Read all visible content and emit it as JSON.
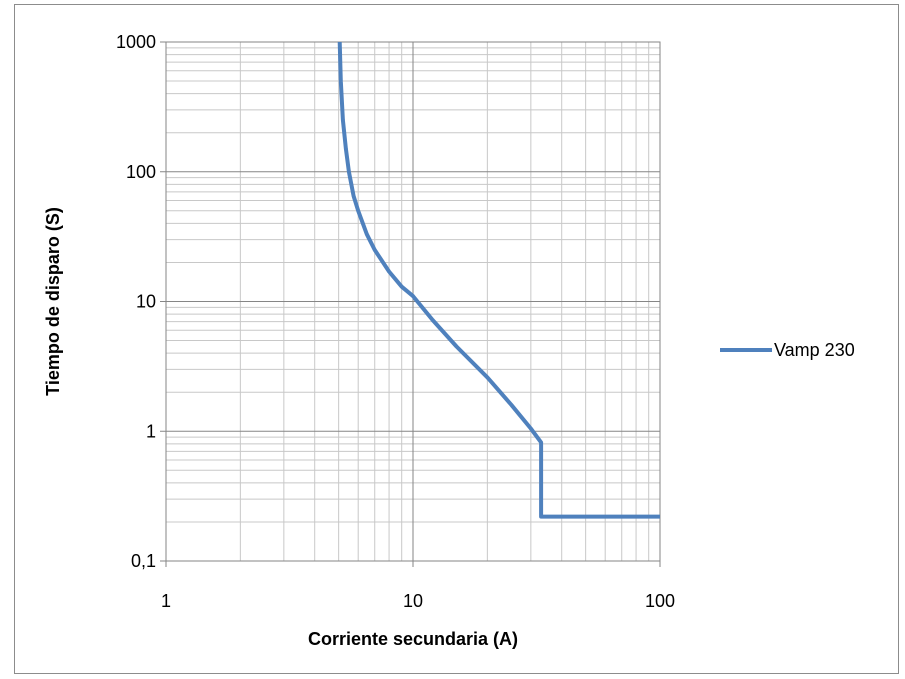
{
  "chart_data": {
    "type": "line",
    "xscale": "log",
    "yscale": "log",
    "xlim": [
      1,
      100
    ],
    "ylim": [
      0.1,
      1000
    ],
    "xlabel": "Corriente secundaria (A)",
    "ylabel": "Tiempo de disparo (S)",
    "x_ticks": [
      {
        "value": 1,
        "label": "1"
      },
      {
        "value": 10,
        "label": "10"
      },
      {
        "value": 100,
        "label": "100"
      }
    ],
    "y_ticks": [
      {
        "value": 0.1,
        "label": "0,1"
      },
      {
        "value": 1,
        "label": "1"
      },
      {
        "value": 10,
        "label": "10"
      },
      {
        "value": 100,
        "label": "100"
      },
      {
        "value": 1000,
        "label": "1000"
      }
    ],
    "grid": {
      "major": true,
      "minor": true
    },
    "legend_position": "right",
    "series": [
      {
        "name": "Vamp 230",
        "color": "#4f81bd",
        "x": [
          5.05,
          5.1,
          5.2,
          5.35,
          5.5,
          5.75,
          6.0,
          6.5,
          7.0,
          8.0,
          9.0,
          10.0,
          12.0,
          15.0,
          20.0,
          25.0,
          30.0,
          33.0,
          33.0,
          40.0,
          60.0,
          100.0
        ],
        "y": [
          1000,
          500,
          250,
          150,
          100,
          65,
          50,
          33,
          25,
          17,
          13,
          11,
          7.2,
          4.5,
          2.6,
          1.6,
          1.05,
          0.82,
          0.22,
          0.22,
          0.22,
          0.22
        ]
      }
    ]
  }
}
